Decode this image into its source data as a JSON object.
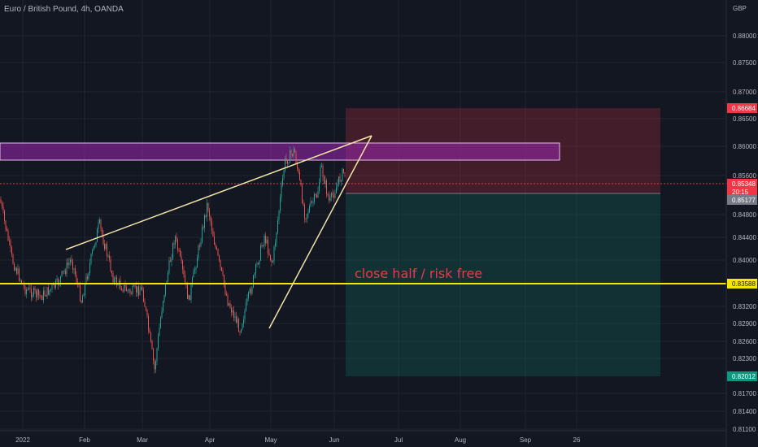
{
  "header": {
    "symbol_title": "Euro / British Pound, 4h, OANDA"
  },
  "chart_data": {
    "type": "candlestick",
    "title": "Euro / British Pound, 4h, OANDA",
    "currency_label": "GBP",
    "y_ticks": [
      "0.88000",
      "0.87500",
      "0.87000",
      "0.86500",
      "0.86000",
      "0.85600",
      "0.84800",
      "0.84400",
      "0.84000",
      "0.83200",
      "0.82900",
      "0.82600",
      "0.82300",
      "0.81700",
      "0.81400",
      "0.81100"
    ],
    "x_ticks": [
      "2022",
      "Feb",
      "Mar",
      "Apr",
      "May",
      "Jun",
      "Jul",
      "Aug",
      "Sep",
      "26"
    ],
    "price_tags": [
      {
        "label": "0.86684",
        "color": "#f23645"
      },
      {
        "label": "0.85348",
        "color": "#f23645"
      },
      {
        "label": "20:15",
        "color": "#f23645"
      },
      {
        "label": "0.85177",
        "color": "#787b86"
      },
      {
        "label": "0.83588",
        "color": "#f7e600"
      },
      {
        "label": "0.82012",
        "color": "#089981"
      }
    ],
    "horizontal_level": 0.83588,
    "current_price": 0.85348,
    "resistance_zone": {
      "from": 0.857,
      "to": 0.8605,
      "color": "#9c27b0"
    },
    "position": {
      "stop": 0.86684,
      "entry": 0.85177,
      "target": 0.82012
    },
    "annotation": "close half / risk free",
    "colors": {
      "up": "#26a69a",
      "down": "#ef5350",
      "background": "#131722",
      "grid": "#1f2430",
      "trendline": "#f3e2a9"
    }
  }
}
